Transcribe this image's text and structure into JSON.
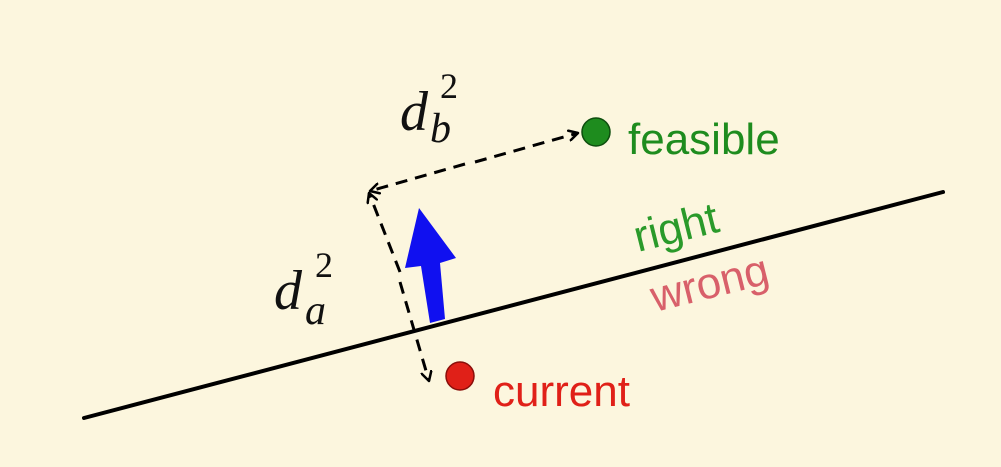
{
  "labels": {
    "feasible": "feasible",
    "right": "right",
    "wrong": "wrong",
    "current": "current",
    "d_b_base": "d",
    "d_b_sub": "b",
    "d_b_sup": "2",
    "d_a_base": "d",
    "d_a_sub": "a",
    "d_a_sup": "2"
  },
  "colors": {
    "background": "#FCF6DE",
    "feasible": "#1E8C1E",
    "right": "#2A9A2A",
    "wrong": "#D8606A",
    "current": "#E02018",
    "arrow": "#1010F0",
    "line": "#000000"
  }
}
